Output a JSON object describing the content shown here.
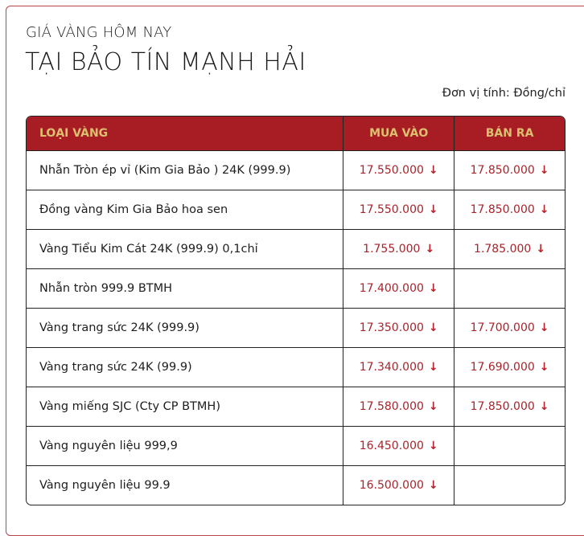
{
  "header": {
    "subtitle": "GIÁ VÀNG HÔM NAY",
    "title": "TẠI BẢO TÍN MẠNH HẢI",
    "unit": "Đơn vị tính: Đồng/chỉ"
  },
  "colors": {
    "header_bg": "#a81d23",
    "header_text": "#dcbf70",
    "price": "#a8232b"
  },
  "table": {
    "columns": [
      "LOẠI VÀNG",
      "MUA VÀO",
      "BÁN RA"
    ],
    "trend_icon": "arrow-down-icon",
    "rows": [
      {
        "name": "Nhẫn Tròn ép vỉ (Kim Gia Bảo ) 24K (999.9)",
        "buy": "17.550.000",
        "sell": "17.850.000"
      },
      {
        "name": "Đồng vàng Kim Gia Bảo hoa sen",
        "buy": "17.550.000",
        "sell": "17.850.000"
      },
      {
        "name": "Vàng Tiểu Kim Cát 24K (999.9) 0,1chỉ",
        "buy": "1.755.000",
        "sell": "1.785.000"
      },
      {
        "name": "Nhẫn tròn 999.9 BTMH",
        "buy": "17.400.000",
        "sell": ""
      },
      {
        "name": "Vàng trang sức 24K (999.9)",
        "buy": "17.350.000",
        "sell": "17.700.000"
      },
      {
        "name": "Vàng trang sức 24K (99.9)",
        "buy": "17.340.000",
        "sell": "17.690.000"
      },
      {
        "name": "Vàng miếng SJC (Cty CP BTMH)",
        "buy": "17.580.000",
        "sell": "17.850.000"
      },
      {
        "name": "Vàng nguyên liệu 999,9",
        "buy": "16.450.000",
        "sell": ""
      },
      {
        "name": "Vàng nguyên liệu 99.9",
        "buy": "16.500.000",
        "sell": ""
      }
    ]
  }
}
